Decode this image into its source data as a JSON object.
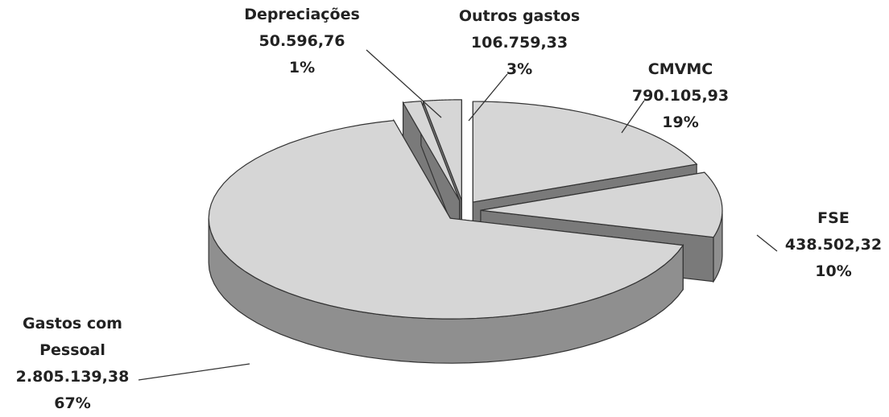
{
  "chart_data": {
    "type": "pie",
    "categories": [
      "CMVMC",
      "FSE",
      "Gastos com Pessoal",
      "Depreciações",
      "Outros gastos"
    ],
    "values": [
      790105.93,
      438502.32,
      2805139.38,
      50596.76,
      106759.33
    ],
    "value_labels": [
      "790.105,93",
      "438.502,32",
      "2.805.139,38",
      "50.596,76",
      "106.759,33"
    ],
    "percents": [
      19,
      10,
      67,
      1,
      3
    ],
    "percent_labels": [
      "19%",
      "10%",
      "67%",
      "1%",
      "3%"
    ],
    "color": "#d6d6d6"
  }
}
